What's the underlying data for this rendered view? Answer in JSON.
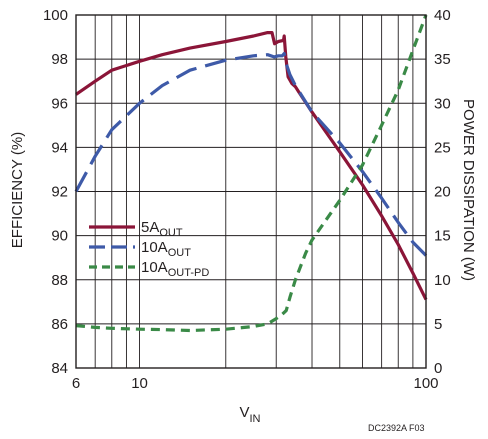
{
  "chart_data": {
    "type": "line",
    "x_label": "V",
    "x_label_sub": "IN",
    "x_scale": "log",
    "x_range": [
      6,
      100
    ],
    "x_ticks": [
      6,
      10,
      100
    ],
    "x_tick_labels": [
      "6",
      "10",
      "100"
    ],
    "y_left_label": "EFFICIENCY (%)",
    "y_left_range": [
      84,
      100
    ],
    "y_left_ticks": [
      84,
      86,
      88,
      90,
      92,
      94,
      96,
      98,
      100
    ],
    "y_right_label": "POWER DISSIPATION (W)",
    "y_right_range": [
      0,
      40
    ],
    "y_right_ticks": [
      0,
      5,
      10,
      15,
      20,
      25,
      30,
      35,
      40
    ],
    "grid": true,
    "legend_position": "left-middle",
    "note": "DC2392A F03",
    "series": [
      {
        "name": "5A",
        "name_sub": "OUT",
        "axis": "left",
        "color": "#8b1538",
        "dash": "solid",
        "points": [
          [
            6,
            96.4
          ],
          [
            7,
            97.0
          ],
          [
            8,
            97.5
          ],
          [
            10,
            97.9
          ],
          [
            12,
            98.2
          ],
          [
            15,
            98.5
          ],
          [
            20,
            98.8
          ],
          [
            25,
            99.05
          ],
          [
            28,
            99.2
          ],
          [
            29,
            99.2
          ],
          [
            29.6,
            98.7
          ],
          [
            30.5,
            98.8
          ],
          [
            31.8,
            98.85
          ],
          [
            32,
            99.05
          ],
          [
            32.4,
            98.1
          ],
          [
            33,
            97.2
          ],
          [
            34,
            96.9
          ],
          [
            35,
            96.75
          ],
          [
            36,
            96.5
          ],
          [
            40,
            95.6
          ],
          [
            50,
            93.8
          ],
          [
            60,
            92.3
          ],
          [
            70,
            90.9
          ],
          [
            80,
            89.6
          ],
          [
            90,
            88.3
          ],
          [
            100,
            87.1
          ]
        ]
      },
      {
        "name": "10A",
        "name_sub": "OUT",
        "axis": "left",
        "color": "#3e5aa8",
        "dash": "long-dash",
        "points": [
          [
            6,
            92.0
          ],
          [
            7,
            93.6
          ],
          [
            8,
            94.8
          ],
          [
            10,
            96.0
          ],
          [
            12,
            96.8
          ],
          [
            15,
            97.5
          ],
          [
            20,
            97.95
          ],
          [
            25,
            98.15
          ],
          [
            28,
            98.2
          ],
          [
            29.5,
            98.1
          ],
          [
            30.5,
            98.15
          ],
          [
            31.5,
            98.15
          ],
          [
            32,
            98.25
          ],
          [
            32.5,
            97.8
          ],
          [
            33.5,
            97.3
          ],
          [
            35,
            96.8
          ],
          [
            40,
            95.6
          ],
          [
            50,
            94.2
          ],
          [
            60,
            92.9
          ],
          [
            70,
            91.7
          ],
          [
            80,
            90.6
          ],
          [
            90,
            89.7
          ],
          [
            100,
            89.1
          ]
        ]
      },
      {
        "name": "10A",
        "name_sub": "OUT-PD",
        "axis": "right",
        "color": "#3a8a47",
        "dash": "short-dash",
        "points": [
          [
            6,
            4.8
          ],
          [
            7,
            4.6
          ],
          [
            8,
            4.5
          ],
          [
            10,
            4.4
          ],
          [
            12,
            4.35
          ],
          [
            15,
            4.25
          ],
          [
            20,
            4.4
          ],
          [
            25,
            4.7
          ],
          [
            28,
            5.0
          ],
          [
            30,
            5.6
          ],
          [
            31.5,
            6.1
          ],
          [
            32.5,
            6.5
          ],
          [
            33.5,
            8.0
          ],
          [
            35,
            10.0
          ],
          [
            38,
            13.0
          ],
          [
            40,
            14.5
          ],
          [
            50,
            19.0
          ],
          [
            60,
            23.0
          ],
          [
            70,
            27.5
          ],
          [
            80,
            31.5
          ],
          [
            90,
            36.0
          ],
          [
            100,
            40.0
          ]
        ]
      }
    ]
  }
}
